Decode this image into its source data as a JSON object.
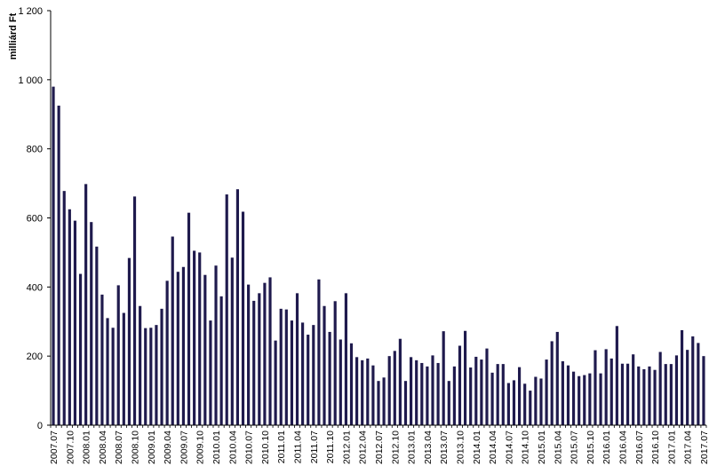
{
  "chart_data": {
    "type": "bar",
    "title": "",
    "xlabel": "",
    "ylabel": "milliárd Ft",
    "ylim": [
      0,
      1200
    ],
    "yticks": [
      0,
      200,
      400,
      600,
      800,
      1000,
      1200
    ],
    "ytick_labels": [
      "0",
      "200",
      "400",
      "600",
      "800",
      "1 000",
      "1 200"
    ],
    "grid": false,
    "legend": "none",
    "bar_color": "#1f1a4d",
    "start_month": "2007.07",
    "xtick_labels": [
      "2007.07",
      "2007.10",
      "2008.01",
      "2008.04",
      "2008.07",
      "2008.10",
      "2009.01",
      "2009.04",
      "2009.07",
      "2009.10",
      "2010.01",
      "2010.04",
      "2010.07",
      "2010.10",
      "2011.01",
      "2011.04",
      "2011.07",
      "2011.10",
      "2012.01",
      "2012.04",
      "2012.07",
      "2012.10",
      "2013.01",
      "2013.04",
      "2013.07",
      "2013.10",
      "2014.01",
      "2014.04",
      "2014.07",
      "2014.10",
      "2015.01",
      "2015.04",
      "2015.07",
      "2015.10",
      "2016.01",
      "2016.04",
      "2016.07",
      "2016.10",
      "2017.01",
      "2017.04",
      "2017.07"
    ],
    "values": [
      980,
      925,
      678,
      625,
      592,
      438,
      698,
      588,
      517,
      378,
      310,
      282,
      405,
      325,
      484,
      662,
      345,
      281,
      282,
      290,
      337,
      418,
      546,
      444,
      458,
      615,
      505,
      500,
      435,
      303,
      462,
      373,
      668,
      485,
      683,
      618,
      407,
      360,
      382,
      412,
      428,
      245,
      337,
      335,
      303,
      382,
      297,
      262,
      290,
      422,
      345,
      270,
      359,
      248,
      382,
      237,
      197,
      188,
      193,
      173,
      128,
      138,
      200,
      215,
      250,
      128,
      197,
      188,
      180,
      170,
      202,
      180,
      272,
      128,
      170,
      230,
      273,
      167,
      198,
      190,
      222,
      152,
      177,
      177,
      122,
      130,
      168,
      120,
      100,
      140,
      135,
      190,
      243,
      270,
      185,
      173,
      155,
      142,
      145,
      150,
      217,
      150,
      220,
      193,
      287,
      178,
      178,
      205,
      170,
      162,
      170,
      160,
      212,
      177,
      177,
      202,
      275,
      218,
      257,
      238,
      200
    ]
  }
}
